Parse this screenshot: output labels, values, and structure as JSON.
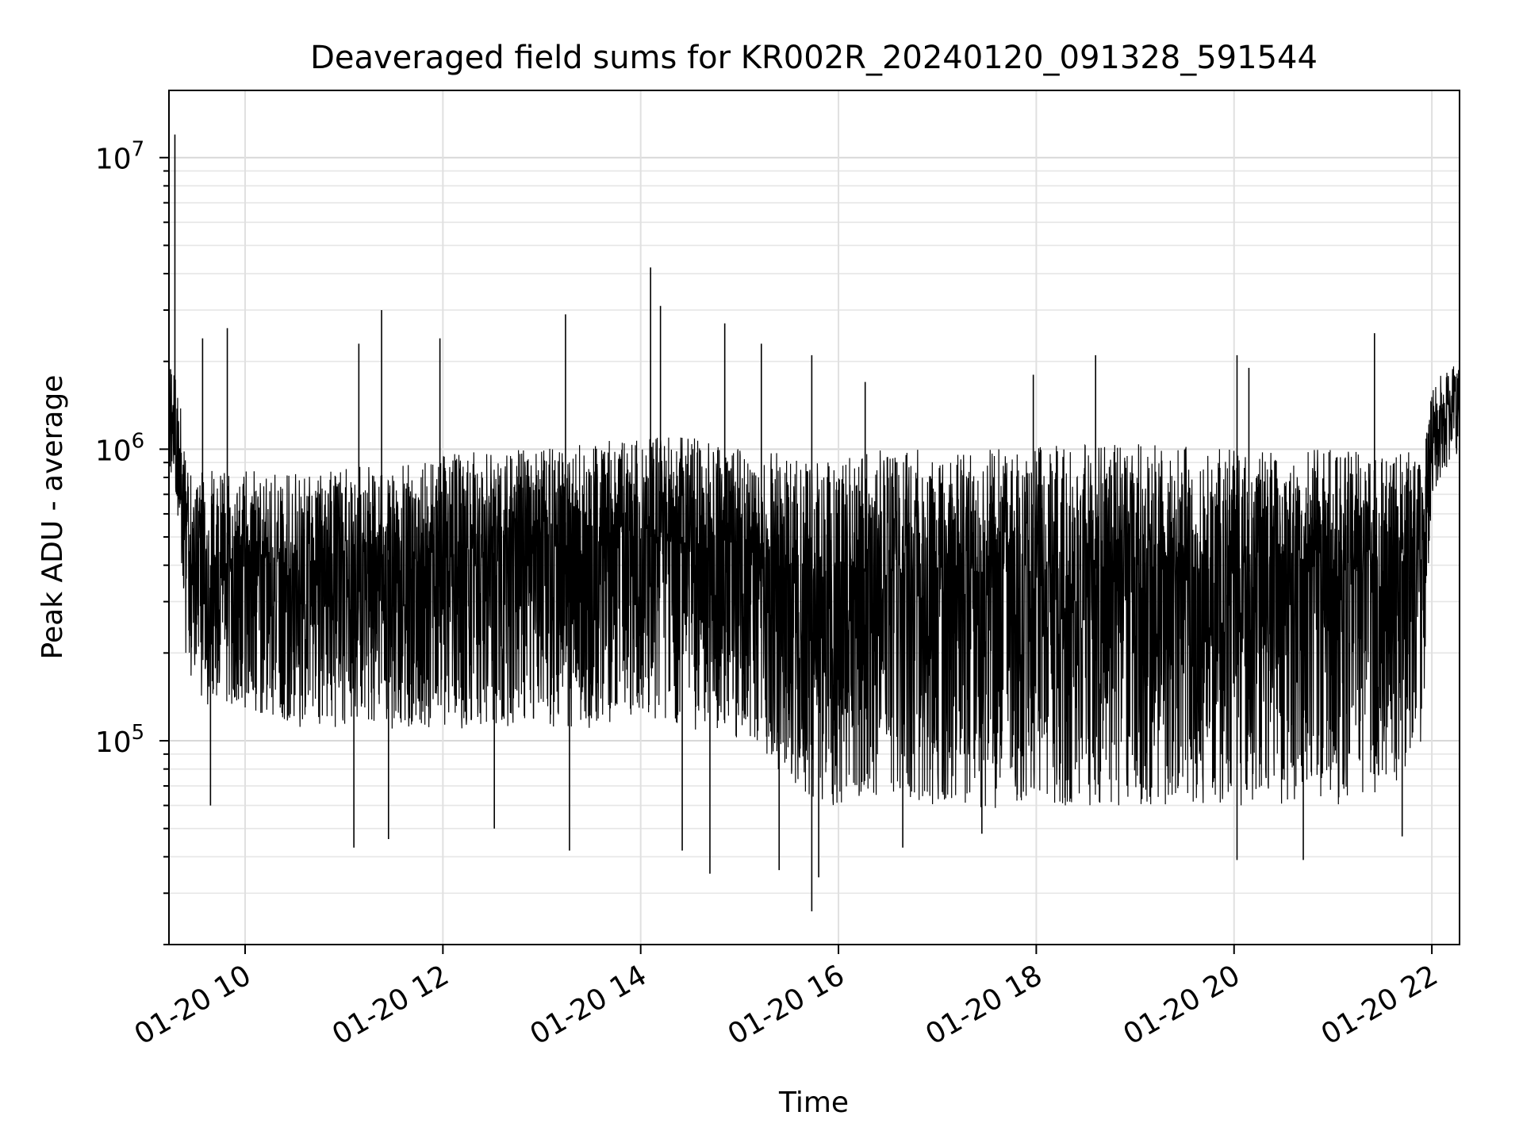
{
  "chart_data": {
    "type": "line",
    "title": "Deaveraged field sums for KR002R_20240120_091328_591544",
    "xlabel": "Time",
    "ylabel": "Peak ADU - average",
    "x_tick_labels": [
      "01-20 10",
      "01-20 12",
      "01-20 14",
      "01-20 16",
      "01-20 18",
      "01-20 20",
      "01-20 22"
    ],
    "y_tick_labels": [
      {
        "base": "10",
        "exp": "5"
      },
      {
        "base": "10",
        "exp": "6"
      },
      {
        "base": "10",
        "exp": "7"
      }
    ],
    "xlim_hours": [
      9.23,
      22.28
    ],
    "ylim": [
      20000,
      17000000
    ],
    "yscale": "log",
    "grid": true,
    "series_color": "#000000",
    "series": [
      {
        "x_hours": [
          9.23,
          9.3,
          9.35,
          9.4,
          9.5,
          9.6,
          9.8,
          10.0,
          10.3,
          10.6,
          11.0,
          11.5,
          12.0,
          12.5,
          13.0,
          13.5,
          14.0,
          14.5,
          15.0,
          15.5,
          15.75,
          16.0,
          16.5,
          17.0,
          17.5,
          18.0,
          18.5,
          19.0,
          19.5,
          20.0,
          20.5,
          21.0,
          21.5,
          21.9,
          22.0,
          22.28
        ],
        "median": [
          1300000,
          1100000,
          800000,
          500000,
          420000,
          400000,
          400000,
          420000,
          400000,
          380000,
          400000,
          420000,
          420000,
          440000,
          460000,
          470000,
          500000,
          500000,
          480000,
          380000,
          350000,
          380000,
          380000,
          380000,
          380000,
          380000,
          390000,
          390000,
          390000,
          380000,
          380000,
          380000,
          380000,
          450000,
          1100000,
          1400000
        ],
        "upper": [
          2200000,
          2000000,
          1400000,
          900000,
          850000,
          850000,
          850000,
          850000,
          850000,
          820000,
          880000,
          900000,
          950000,
          1000000,
          1000000,
          1050000,
          1100000,
          1100000,
          1050000,
          950000,
          900000,
          950000,
          1000000,
          1000000,
          1000000,
          1050000,
          1050000,
          1050000,
          1050000,
          1000000,
          1000000,
          1000000,
          1000000,
          1050000,
          1700000,
          2000000
        ],
        "lower": [
          900000,
          700000,
          400000,
          180000,
          150000,
          130000,
          130000,
          130000,
          120000,
          110000,
          110000,
          110000,
          110000,
          110000,
          110000,
          110000,
          120000,
          110000,
          100000,
          75000,
          55000,
          60000,
          60000,
          60000,
          58000,
          58000,
          60000,
          60000,
          60000,
          60000,
          60000,
          60000,
          65000,
          90000,
          700000,
          1000000
        ]
      }
    ],
    "spikes": [
      {
        "x_hours": 9.29,
        "y": 12000000
      },
      {
        "x_hours": 9.57,
        "y": 2400000
      },
      {
        "x_hours": 9.82,
        "y": 2600000
      },
      {
        "x_hours": 11.15,
        "y": 2300000
      },
      {
        "x_hours": 11.38,
        "y": 3000000
      },
      {
        "x_hours": 11.97,
        "y": 2400000
      },
      {
        "x_hours": 13.24,
        "y": 2900000
      },
      {
        "x_hours": 14.1,
        "y": 4200000
      },
      {
        "x_hours": 14.2,
        "y": 3100000
      },
      {
        "x_hours": 14.85,
        "y": 2700000
      },
      {
        "x_hours": 15.22,
        "y": 2300000
      },
      {
        "x_hours": 15.73,
        "y": 2100000
      },
      {
        "x_hours": 16.27,
        "y": 1700000
      },
      {
        "x_hours": 17.97,
        "y": 1800000
      },
      {
        "x_hours": 18.6,
        "y": 2100000
      },
      {
        "x_hours": 20.03,
        "y": 2100000
      },
      {
        "x_hours": 20.15,
        "y": 1900000
      },
      {
        "x_hours": 21.42,
        "y": 2500000
      },
      {
        "x_hours": 9.65,
        "y": 60000
      },
      {
        "x_hours": 11.1,
        "y": 43000
      },
      {
        "x_hours": 11.45,
        "y": 46000
      },
      {
        "x_hours": 12.52,
        "y": 50000
      },
      {
        "x_hours": 13.28,
        "y": 42000
      },
      {
        "x_hours": 14.42,
        "y": 42000
      },
      {
        "x_hours": 14.7,
        "y": 35000
      },
      {
        "x_hours": 15.4,
        "y": 36000
      },
      {
        "x_hours": 15.73,
        "y": 26000
      },
      {
        "x_hours": 15.8,
        "y": 34000
      },
      {
        "x_hours": 16.65,
        "y": 43000
      },
      {
        "x_hours": 17.45,
        "y": 48000
      },
      {
        "x_hours": 20.03,
        "y": 39000
      },
      {
        "x_hours": 20.7,
        "y": 39000
      },
      {
        "x_hours": 21.7,
        "y": 47000
      }
    ]
  }
}
